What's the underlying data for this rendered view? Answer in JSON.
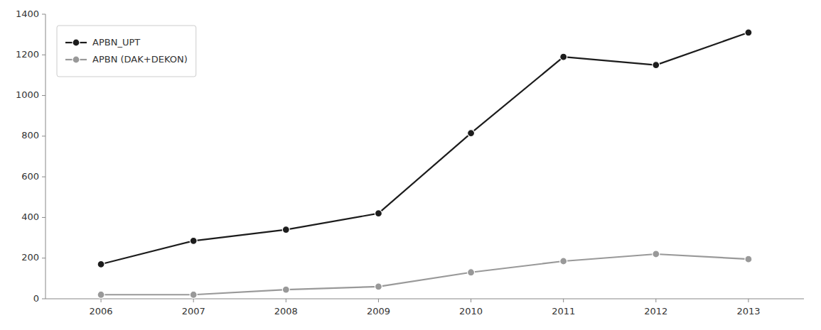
{
  "chart_data": {
    "type": "line",
    "x": [
      2006,
      2007,
      2008,
      2009,
      2010,
      2011,
      2012,
      2013
    ],
    "xlim": [
      2005.4,
      2013.6
    ],
    "xticks": [
      2006,
      2007,
      2008,
      2009,
      2010,
      2011,
      2012,
      2013
    ],
    "ylim": [
      0,
      1400
    ],
    "yticks": [
      0,
      200,
      400,
      600,
      800,
      1000,
      1200,
      1400
    ],
    "grid": false,
    "legend": "upper left",
    "series": [
      {
        "name": "APBN_UPT",
        "color": "#1c1c1c",
        "marker": "circle",
        "line_style": "solid",
        "values": [
          170,
          285,
          340,
          420,
          815,
          1190,
          1150,
          1310
        ]
      },
      {
        "name": "APBN (DAK+DEKON)",
        "color": "#999999",
        "marker": "circle",
        "line_style": "solid",
        "values": [
          20,
          20,
          45,
          60,
          130,
          185,
          220,
          195
        ]
      }
    ]
  }
}
